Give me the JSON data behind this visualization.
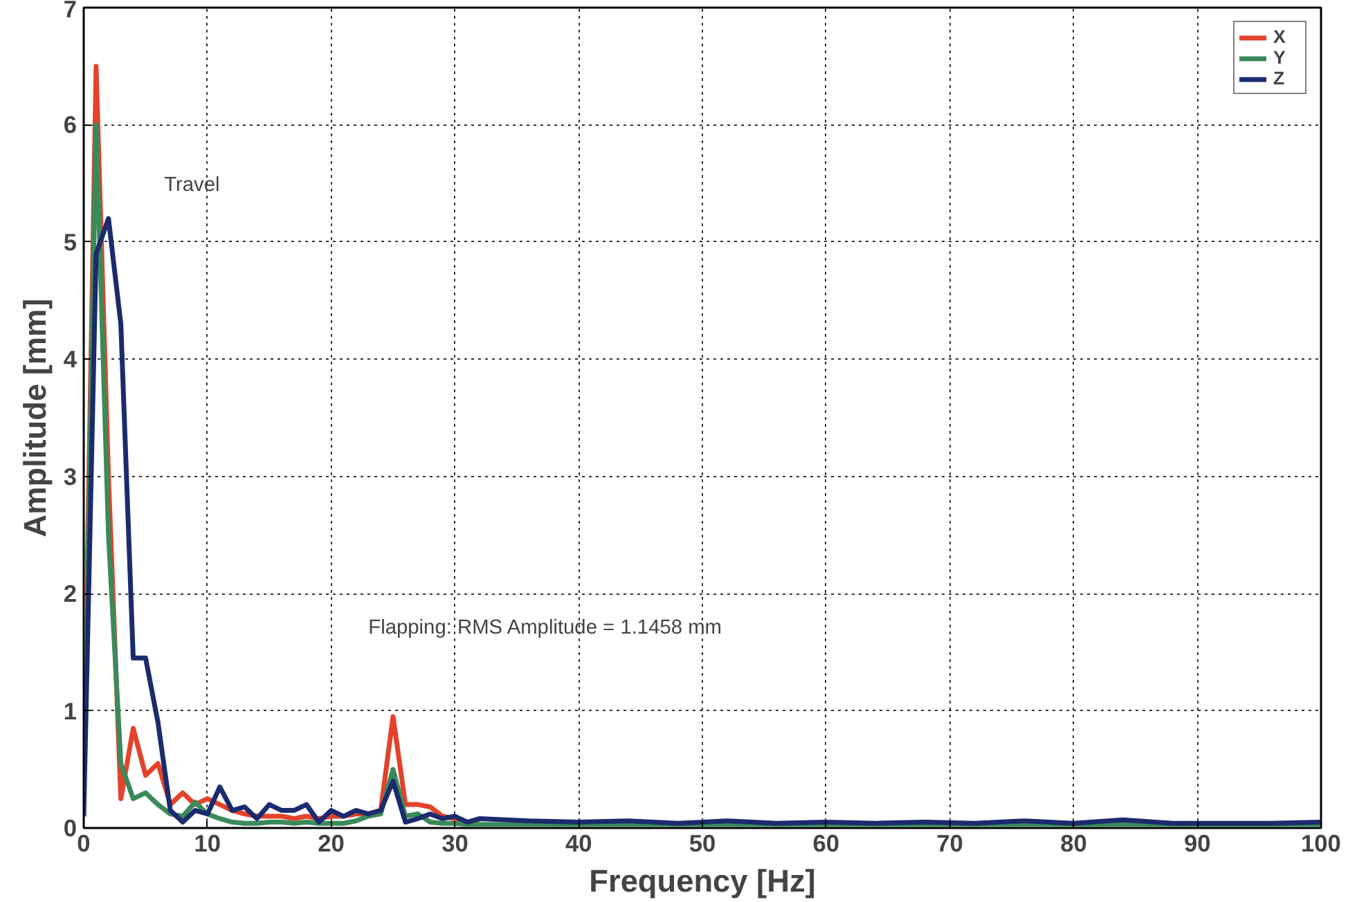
{
  "chart_data": {
    "type": "line",
    "xlabel": "Frequency [Hz]",
    "ylabel": "Amplitude [mm]",
    "x": [
      0,
      1,
      2,
      3,
      4,
      5,
      6,
      7,
      8,
      9,
      10,
      11,
      12,
      13,
      14,
      15,
      16,
      17,
      18,
      19,
      20,
      21,
      22,
      23,
      24,
      25,
      26,
      27,
      28,
      29,
      30,
      31,
      32,
      36,
      40,
      44,
      48,
      52,
      56,
      60,
      64,
      68,
      72,
      76,
      80,
      84,
      88,
      92,
      96,
      100
    ],
    "series": [
      {
        "name": "X",
        "color": "#e2432a",
        "x": [
          0,
          1,
          2,
          3,
          4,
          5,
          6,
          7,
          8,
          9,
          10,
          11,
          12,
          13,
          14,
          15,
          16,
          17,
          18,
          19,
          20,
          21,
          22,
          23,
          24,
          25,
          26,
          27,
          28,
          29,
          30,
          31,
          32
        ],
        "values": [
          0.5,
          6.5,
          3.0,
          0.25,
          0.85,
          0.45,
          0.55,
          0.2,
          0.3,
          0.2,
          0.25,
          0.2,
          0.15,
          0.12,
          0.1,
          0.1,
          0.1,
          0.08,
          0.1,
          0.08,
          0.1,
          0.1,
          0.12,
          0.12,
          0.15,
          0.95,
          0.2,
          0.2,
          0.18,
          0.1,
          0.08,
          0.05,
          0.05
        ]
      },
      {
        "name": "Y",
        "color": "#3a8a5a",
        "values": [
          0.3,
          6.0,
          2.5,
          0.55,
          0.25,
          0.3,
          0.2,
          0.12,
          0.1,
          0.22,
          0.12,
          0.08,
          0.05,
          0.04,
          0.04,
          0.05,
          0.05,
          0.04,
          0.05,
          0.04,
          0.04,
          0.04,
          0.06,
          0.1,
          0.12,
          0.5,
          0.1,
          0.12,
          0.05,
          0.04,
          0.04,
          0.03,
          0.03,
          0.03,
          0.03,
          0.03,
          0.03,
          0.03,
          0.03,
          0.03,
          0.03,
          0.03,
          0.03,
          0.03,
          0.03,
          0.03,
          0.03,
          0.03,
          0.03,
          0.03
        ]
      },
      {
        "name": "Z",
        "color": "#1c2a6e",
        "values": [
          0.1,
          4.9,
          5.2,
          4.3,
          1.45,
          1.45,
          0.9,
          0.15,
          0.05,
          0.15,
          0.12,
          0.35,
          0.15,
          0.18,
          0.08,
          0.2,
          0.15,
          0.15,
          0.2,
          0.05,
          0.15,
          0.1,
          0.15,
          0.12,
          0.15,
          0.4,
          0.05,
          0.08,
          0.12,
          0.08,
          0.1,
          0.05,
          0.08,
          0.06,
          0.05,
          0.06,
          0.04,
          0.06,
          0.04,
          0.05,
          0.04,
          0.05,
          0.04,
          0.06,
          0.04,
          0.07,
          0.04,
          0.04,
          0.04,
          0.05
        ]
      }
    ],
    "xlim": [
      0,
      100
    ],
    "xticks": [
      0,
      10,
      20,
      30,
      40,
      50,
      60,
      70,
      80,
      90,
      100
    ],
    "ylim": [
      0,
      7
    ],
    "yticks": [
      0,
      1,
      2,
      3,
      4,
      5,
      6,
      7
    ],
    "grid": true,
    "legend": "top right",
    "marker": "none",
    "line_style": "solid",
    "annotations": [
      "Travel",
      "Flapping: RMS Amplitude = 1.1458 mm"
    ]
  }
}
